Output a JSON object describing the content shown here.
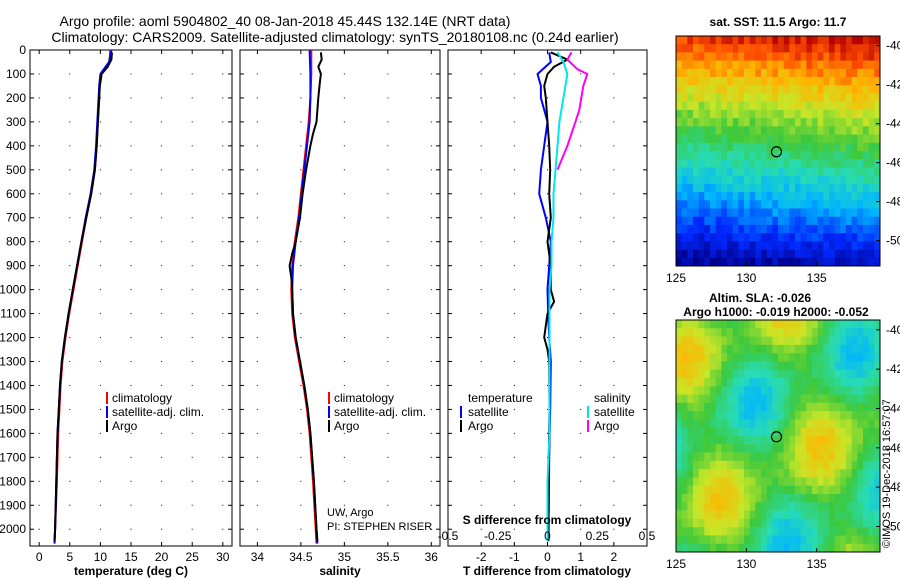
{
  "header": {
    "title_line1": "Argo profile: aoml 5904802_40 08-Jan-2018 45.44S 132.14E (NRT data)",
    "title_line2": "Climatology: CARS2009. Satellite-adjusted climatology: synTS_20180108.nc (0.24d earlier)"
  },
  "colors": {
    "climatology": "#ff0000",
    "satellite": "#0000ff",
    "argo": "#000000",
    "sal_satellite": "#00e5ee",
    "sal_argo": "#ff00ff"
  },
  "legend": {
    "climatology": "climatology",
    "satellite_adj": "satellite-adj. clim.",
    "argo": "Argo",
    "temperature": "temperature",
    "salinity": "salinity",
    "satellite": "satellite"
  },
  "credits": {
    "line1": "UW, Argo",
    "line2": "PI: STEPHEN RISER"
  },
  "sst_map": {
    "title": "sat. SST: 11.5 Argo: 11.7",
    "lon_ticks": [
      "125",
      "130",
      "135"
    ],
    "lat_ticks": [
      "-40",
      "-42",
      "-44",
      "-46",
      "-48",
      "-50"
    ],
    "marker": {
      "lon": 132.14,
      "lat": -45.44
    }
  },
  "sla_map": {
    "title_line1": "Altim. SLA: -0.026",
    "title_line2": "Argo h1000: -0.019 h2000: -0.052",
    "lon_ticks": [
      "125",
      "130",
      "135"
    ],
    "lat_ticks": [
      "-40",
      "-42",
      "-44",
      "-46",
      "-48",
      "-50"
    ],
    "marker": {
      "lon": 132.14,
      "lat": -45.44
    }
  },
  "footer_stamp": "©IMOS 19-Dec-2018 16:57:07",
  "chart_data": [
    {
      "type": "line",
      "id": "temperature",
      "xlabel": "temperature (deg C)",
      "ylabel": "",
      "xlim": [
        -1.5,
        31.5
      ],
      "ylim": [
        0,
        2070
      ],
      "x_ticks": [
        "0",
        "5",
        "10",
        "15",
        "20",
        "25",
        "30"
      ],
      "y_ticks": [
        "0",
        "100",
        "200",
        "300",
        "400",
        "500",
        "600",
        "700",
        "800",
        "900",
        "1000",
        "1100",
        "1200",
        "1300",
        "1400",
        "1500",
        "1600",
        "1700",
        "1800",
        "1900",
        "2000"
      ],
      "series": [
        {
          "name": "climatology",
          "depth": [
            0,
            50,
            100,
            150,
            200,
            300,
            400,
            500,
            600,
            700,
            800,
            900,
            1000,
            1100,
            1200,
            1300,
            1400,
            1500,
            1600,
            1800,
            2000,
            2060
          ],
          "values": [
            11.6,
            11.5,
            10.2,
            9.9,
            9.8,
            9.6,
            9.4,
            9.1,
            8.5,
            7.7,
            7.0,
            6.3,
            5.6,
            4.9,
            4.3,
            3.8,
            3.5,
            3.3,
            3.1,
            2.9,
            2.6,
            2.5
          ]
        },
        {
          "name": "satellite-adj. clim.",
          "depth": [
            0,
            50,
            100,
            150,
            200,
            300,
            400,
            500,
            600,
            700,
            800,
            900,
            1000,
            1100,
            1200,
            1300,
            1400,
            1500,
            1600,
            1800,
            2000,
            2060
          ],
          "values": [
            11.8,
            11.4,
            10.0,
            9.8,
            9.7,
            9.5,
            9.3,
            9.0,
            8.4,
            7.6,
            6.9,
            6.2,
            5.5,
            4.8,
            4.2,
            3.7,
            3.4,
            3.2,
            3.0,
            2.8,
            2.6,
            2.5
          ]
        },
        {
          "name": "Argo",
          "depth": [
            10,
            40,
            70,
            100,
            150,
            200,
            300,
            400,
            500,
            600,
            700,
            800,
            900,
            1000,
            1100,
            1200,
            1300,
            1400,
            1500,
            1600,
            1800,
            2000,
            2050
          ],
          "values": [
            11.9,
            11.8,
            11.2,
            10.2,
            9.9,
            9.8,
            9.6,
            9.4,
            9.1,
            8.5,
            7.7,
            6.9,
            6.2,
            5.5,
            4.8,
            4.2,
            3.7,
            3.4,
            3.2,
            3.0,
            2.8,
            2.6,
            2.5
          ]
        }
      ]
    },
    {
      "type": "line",
      "id": "salinity",
      "xlabel": "salinity",
      "ylabel": "",
      "xlim": [
        33.8,
        36.1
      ],
      "ylim": [
        0,
        2070
      ],
      "x_ticks": [
        "34",
        "34.5",
        "35",
        "35.5",
        "36"
      ],
      "series": [
        {
          "name": "climatology",
          "depth": [
            0,
            100,
            200,
            300,
            400,
            500,
            600,
            700,
            800,
            900,
            1000,
            1100,
            1200,
            1300,
            1400,
            1500,
            1600,
            1800,
            2000,
            2060
          ],
          "values": [
            34.62,
            34.62,
            34.61,
            34.59,
            34.56,
            34.53,
            34.5,
            34.47,
            34.43,
            34.4,
            34.39,
            34.4,
            34.43,
            34.48,
            34.53,
            34.57,
            34.6,
            34.64,
            34.67,
            34.68
          ]
        },
        {
          "name": "satellite-adj. clim.",
          "depth": [
            0,
            100,
            200,
            300,
            400,
            500,
            600,
            700,
            800,
            900,
            1000,
            1100,
            1200,
            1300,
            1400,
            1500,
            1600,
            1800,
            2000,
            2060
          ],
          "values": [
            34.6,
            34.61,
            34.61,
            34.6,
            34.57,
            34.54,
            34.51,
            34.48,
            34.44,
            34.41,
            34.4,
            34.41,
            34.44,
            34.49,
            34.54,
            34.58,
            34.61,
            34.65,
            34.68,
            34.69
          ]
        },
        {
          "name": "Argo",
          "depth": [
            10,
            40,
            70,
            100,
            130,
            200,
            300,
            350,
            400,
            500,
            600,
            700,
            800,
            850,
            900,
            950,
            1000,
            1100,
            1200,
            1300,
            1400,
            1500,
            1600,
            1800,
            2000,
            2050
          ],
          "values": [
            34.73,
            34.74,
            34.7,
            34.73,
            34.72,
            34.7,
            34.68,
            34.64,
            34.61,
            34.56,
            34.52,
            34.49,
            34.44,
            34.4,
            34.37,
            34.39,
            34.4,
            34.41,
            34.44,
            34.49,
            34.54,
            34.58,
            34.61,
            34.65,
            34.68,
            34.69
          ]
        }
      ]
    },
    {
      "type": "line",
      "id": "differences",
      "xlabel": "T difference from climatology",
      "xlabel_top": "S difference from climatology",
      "xlim": [
        -3.0,
        3.0
      ],
      "ylim": [
        0,
        2070
      ],
      "x_ticks": [
        "-2",
        "-1",
        "0",
        "1",
        "2"
      ],
      "s_ticks": [
        "-0.5",
        "-0.25",
        "0",
        "0.25",
        "0.5"
      ],
      "series": [
        {
          "name": "temperature satellite",
          "depth": [
            10,
            50,
            100,
            150,
            200,
            300,
            400,
            500,
            600,
            700,
            800,
            900,
            1000,
            1100,
            1200,
            1300,
            1500,
            1700,
            1900,
            2050
          ],
          "values": [
            0.05,
            0.1,
            -0.3,
            -0.2,
            -0.2,
            0.0,
            -0.1,
            -0.2,
            -0.25,
            -0.05,
            0.1,
            0.05,
            0.0,
            0.02,
            0.05,
            0.1,
            0.08,
            0.05,
            0.04,
            0.03
          ]
        },
        {
          "name": "temperature Argo",
          "depth": [
            10,
            40,
            70,
            100,
            150,
            200,
            300,
            400,
            500,
            600,
            700,
            800,
            900,
            1000,
            1050,
            1100,
            1200,
            1250,
            1300,
            1500,
            1700,
            1900,
            2050
          ],
          "values": [
            0.1,
            0.6,
            0.2,
            0.0,
            -0.1,
            -0.05,
            0.0,
            0.05,
            0.08,
            0.05,
            0.1,
            0.0,
            0.1,
            0.1,
            0.2,
            0.0,
            -0.1,
            0.0,
            0.05,
            0.06,
            0.04,
            0.03,
            0.02
          ]
        },
        {
          "name": "salinity satellite",
          "depth": [
            10,
            50,
            100,
            200,
            300,
            400,
            500,
            600,
            700,
            800,
            900,
            1000,
            1200,
            1400,
            1600,
            1800,
            2000,
            2050
          ],
          "values": [
            0.05,
            0.08,
            0.1,
            0.08,
            0.06,
            0.05,
            0.04,
            0.03,
            0.03,
            0.02,
            0.02,
            0.01,
            0.01,
            0.01,
            0.01,
            0.0,
            0.0,
            0.0
          ]
        },
        {
          "name": "salinity Argo",
          "depth": [
            10,
            40,
            80,
            100,
            150,
            200,
            250,
            300,
            400,
            500
          ],
          "values": [
            0.12,
            0.1,
            0.15,
            0.2,
            0.18,
            0.17,
            0.16,
            0.14,
            0.1,
            0.05
          ]
        }
      ]
    }
  ]
}
